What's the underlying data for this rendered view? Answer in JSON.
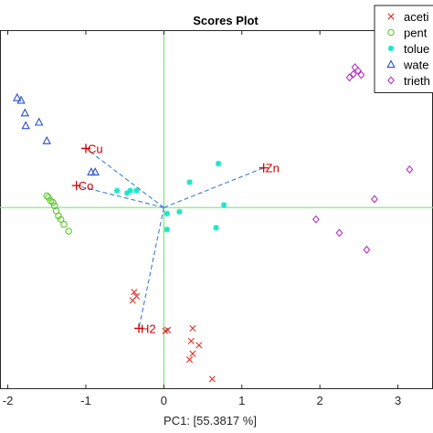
{
  "chart_data": {
    "type": "scatter",
    "title": "Scores Plot",
    "xlabel": "PC1: [55.3817 %]",
    "ylabel": "",
    "xlim": [
      -2.1,
      3.45
    ],
    "ylim": [
      -2.15,
      2.1
    ],
    "xticks": [
      -2,
      -1,
      0,
      1,
      2,
      3
    ],
    "xtick_labels": [
      "-2",
      "-1",
      "0",
      "1",
      "2",
      "3"
    ],
    "grid": false,
    "legend_position": "top-right",
    "series": [
      {
        "name": "aceti",
        "marker": "x",
        "color": "#e0322a",
        "points": [
          [
            -0.35,
            -1.05
          ],
          [
            -0.38,
            -1.0
          ],
          [
            -0.4,
            -1.1
          ],
          [
            0.05,
            -1.45
          ],
          [
            0.02,
            -1.46
          ],
          [
            0.37,
            -1.43
          ],
          [
            0.35,
            -1.58
          ],
          [
            0.45,
            -1.63
          ],
          [
            0.37,
            -1.73
          ],
          [
            0.33,
            -1.8
          ],
          [
            0.62,
            -2.03
          ]
        ]
      },
      {
        "name": "pent",
        "marker": "o",
        "color": "#5ec72a",
        "points": [
          [
            -1.5,
            0.14
          ],
          [
            -1.48,
            0.12
          ],
          [
            -1.45,
            0.08
          ],
          [
            -1.42,
            0.06
          ],
          [
            -1.4,
            0.02
          ],
          [
            -1.38,
            -0.04
          ],
          [
            -1.35,
            -0.1
          ],
          [
            -1.32,
            -0.14
          ],
          [
            -1.28,
            -0.2
          ],
          [
            -1.22,
            -0.28
          ]
        ]
      },
      {
        "name": "tolue",
        "marker": "*",
        "color": "#1ce6c8",
        "points": [
          [
            0.7,
            0.52
          ],
          [
            0.33,
            0.3
          ],
          [
            -0.43,
            0.2
          ],
          [
            -0.6,
            0.2
          ],
          [
            -0.47,
            0.17
          ],
          [
            -0.35,
            0.2
          ],
          [
            0.77,
            0.03
          ],
          [
            0.2,
            -0.05
          ],
          [
            0.04,
            -0.07
          ],
          [
            0.67,
            -0.24
          ],
          [
            0.04,
            -0.26
          ]
        ]
      },
      {
        "name": "wate",
        "marker": "^",
        "color": "#2b4fc6",
        "points": [
          [
            -1.88,
            1.3
          ],
          [
            -1.83,
            1.27
          ],
          [
            -1.78,
            1.12
          ],
          [
            -1.6,
            1.01
          ],
          [
            -1.77,
            0.97
          ],
          [
            -1.5,
            0.79
          ],
          [
            -0.93,
            0.42
          ],
          [
            -0.88,
            0.42
          ]
        ]
      },
      {
        "name": "trieth",
        "marker": "d",
        "color": "#b233c0",
        "points": [
          [
            2.45,
            1.66
          ],
          [
            2.49,
            1.62
          ],
          [
            2.43,
            1.58
          ],
          [
            2.53,
            1.57
          ],
          [
            2.38,
            1.54
          ],
          [
            3.15,
            0.45
          ],
          [
            2.7,
            0.1
          ],
          [
            1.95,
            -0.14
          ],
          [
            2.25,
            -0.3
          ],
          [
            2.6,
            -0.5
          ]
        ]
      }
    ],
    "loadings": [
      {
        "label": "Cu",
        "x": -1.0,
        "y": 0.7
      },
      {
        "label": "Co",
        "x": -1.12,
        "y": 0.26
      },
      {
        "label": "Zn",
        "x": 1.28,
        "y": 0.47
      },
      {
        "label": "H2",
        "x": -0.32,
        "y": -1.43
      }
    ],
    "colors": {
      "axis_lines": "#7ee37e",
      "loading_lines": "#3a7fd5",
      "loading_markers": "#cc0000"
    }
  }
}
